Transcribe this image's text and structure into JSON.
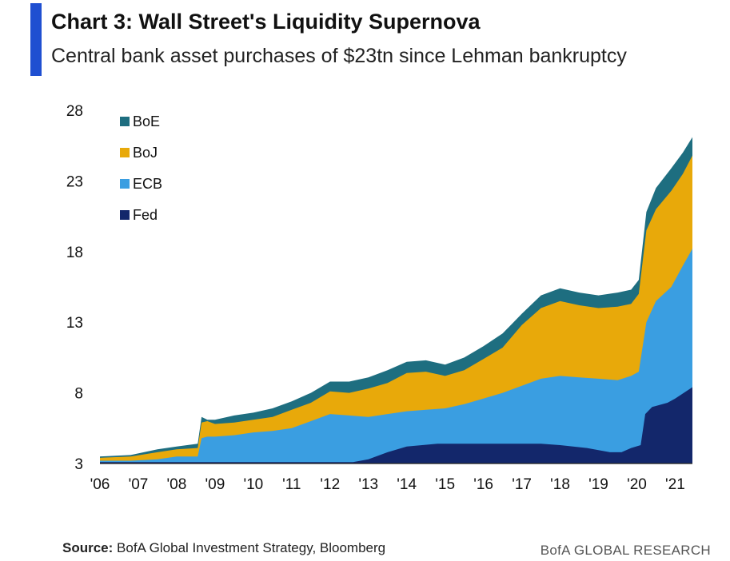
{
  "title": "Chart 3: Wall Street's Liquidity Supernova",
  "subtitle": "Central bank asset purchases of $23tn since Lehman bankruptcy",
  "source_label": "Source:",
  "source_text": "BofA Global Investment Strategy, Bloomberg",
  "brand": "BofA GLOBAL RESEARCH",
  "chart_data": {
    "type": "area",
    "stacked": true,
    "title": "",
    "xlabel": "",
    "ylabel": "",
    "ylim": [
      3,
      28
    ],
    "xlim": [
      2006.0,
      2021.45
    ],
    "y_ticks": [
      3,
      8,
      13,
      18,
      23,
      28
    ],
    "x_tick_labels": [
      {
        "label": "'06",
        "x": 2006.0
      },
      {
        "label": "'07",
        "x": 2007.0
      },
      {
        "label": "'08",
        "x": 2008.0
      },
      {
        "label": "'09",
        "x": 2009.0
      },
      {
        "label": "'10",
        "x": 2010.0
      },
      {
        "label": "'11",
        "x": 2011.0
      },
      {
        "label": "'12",
        "x": 2012.0
      },
      {
        "label": "'13",
        "x": 2013.0
      },
      {
        "label": "'14",
        "x": 2014.0
      },
      {
        "label": "'15",
        "x": 2015.0
      },
      {
        "label": "'16",
        "x": 2016.0
      },
      {
        "label": "'17",
        "x": 2017.0
      },
      {
        "label": "'18",
        "x": 2018.0
      },
      {
        "label": "'19",
        "x": 2019.0
      },
      {
        "label": "'20",
        "x": 2020.0
      },
      {
        "label": "'21",
        "x": 2021.0
      }
    ],
    "legend_position": "top-left",
    "legend_order": [
      "BoE",
      "BoJ",
      "ECB",
      "Fed"
    ],
    "series": [
      {
        "name": "Fed",
        "color": "#13276b",
        "points": [
          [
            2006.0,
            3.1
          ],
          [
            2008.6,
            3.1
          ],
          [
            2012.6,
            3.1
          ],
          [
            2013.0,
            3.3
          ],
          [
            2013.5,
            3.8
          ],
          [
            2014.0,
            4.2
          ],
          [
            2014.8,
            4.4
          ],
          [
            2015.5,
            4.4
          ],
          [
            2016.5,
            4.4
          ],
          [
            2017.5,
            4.4
          ],
          [
            2018.0,
            4.3
          ],
          [
            2018.7,
            4.1
          ],
          [
            2019.3,
            3.8
          ],
          [
            2019.6,
            3.8
          ],
          [
            2019.85,
            4.1
          ],
          [
            2020.1,
            4.3
          ],
          [
            2020.22,
            6.5
          ],
          [
            2020.4,
            7.0
          ],
          [
            2020.8,
            7.3
          ],
          [
            2021.0,
            7.6
          ],
          [
            2021.45,
            8.4
          ]
        ]
      },
      {
        "name": "ECB",
        "color": "#3a9ee1",
        "points": [
          [
            2006.0,
            3.2
          ],
          [
            2006.8,
            3.2
          ],
          [
            2007.5,
            3.3
          ],
          [
            2008.0,
            3.5
          ],
          [
            2008.55,
            3.5
          ],
          [
            2008.65,
            4.8
          ],
          [
            2008.8,
            4.9
          ],
          [
            2009.0,
            4.9
          ],
          [
            2009.5,
            5.0
          ],
          [
            2010.0,
            5.2
          ],
          [
            2010.5,
            5.3
          ],
          [
            2011.0,
            5.5
          ],
          [
            2011.5,
            6.0
          ],
          [
            2012.0,
            6.5
          ],
          [
            2012.5,
            6.4
          ],
          [
            2013.0,
            6.3
          ],
          [
            2013.5,
            6.5
          ],
          [
            2014.0,
            6.7
          ],
          [
            2014.5,
            6.8
          ],
          [
            2015.0,
            6.9
          ],
          [
            2015.5,
            7.2
          ],
          [
            2016.0,
            7.6
          ],
          [
            2016.5,
            8.0
          ],
          [
            2017.0,
            8.5
          ],
          [
            2017.5,
            9.0
          ],
          [
            2018.0,
            9.2
          ],
          [
            2018.5,
            9.1
          ],
          [
            2019.0,
            9.0
          ],
          [
            2019.5,
            8.9
          ],
          [
            2019.85,
            9.2
          ],
          [
            2020.05,
            9.5
          ],
          [
            2020.25,
            13.0
          ],
          [
            2020.5,
            14.5
          ],
          [
            2020.9,
            15.5
          ],
          [
            2021.2,
            17.0
          ],
          [
            2021.45,
            18.2
          ]
        ]
      },
      {
        "name": "BoJ",
        "color": "#e8a90a",
        "points": [
          [
            2006.0,
            3.4
          ],
          [
            2006.8,
            3.5
          ],
          [
            2007.5,
            3.8
          ],
          [
            2008.0,
            4.0
          ],
          [
            2008.55,
            4.1
          ],
          [
            2008.65,
            5.9
          ],
          [
            2008.8,
            6.0
          ],
          [
            2009.0,
            5.8
          ],
          [
            2009.5,
            5.9
          ],
          [
            2010.0,
            6.1
          ],
          [
            2010.5,
            6.3
          ],
          [
            2011.0,
            6.8
          ],
          [
            2011.5,
            7.3
          ],
          [
            2012.0,
            8.1
          ],
          [
            2012.5,
            8.0
          ],
          [
            2013.0,
            8.3
          ],
          [
            2013.5,
            8.7
          ],
          [
            2014.0,
            9.4
          ],
          [
            2014.5,
            9.5
          ],
          [
            2015.0,
            9.2
          ],
          [
            2015.5,
            9.6
          ],
          [
            2016.0,
            10.4
          ],
          [
            2016.5,
            11.2
          ],
          [
            2017.0,
            12.8
          ],
          [
            2017.5,
            14.0
          ],
          [
            2018.0,
            14.5
          ],
          [
            2018.5,
            14.2
          ],
          [
            2019.0,
            14.0
          ],
          [
            2019.5,
            14.1
          ],
          [
            2019.85,
            14.3
          ],
          [
            2020.05,
            15.0
          ],
          [
            2020.25,
            19.5
          ],
          [
            2020.5,
            21.0
          ],
          [
            2020.9,
            22.3
          ],
          [
            2021.2,
            23.5
          ],
          [
            2021.45,
            24.8
          ]
        ]
      },
      {
        "name": "BoE",
        "color": "#1e6e80",
        "points": [
          [
            2006.0,
            3.5
          ],
          [
            2006.8,
            3.6
          ],
          [
            2007.5,
            4.0
          ],
          [
            2008.0,
            4.2
          ],
          [
            2008.55,
            4.4
          ],
          [
            2008.65,
            6.3
          ],
          [
            2008.8,
            6.1
          ],
          [
            2009.0,
            6.1
          ],
          [
            2009.5,
            6.4
          ],
          [
            2010.0,
            6.6
          ],
          [
            2010.5,
            6.9
          ],
          [
            2011.0,
            7.4
          ],
          [
            2011.5,
            8.0
          ],
          [
            2012.0,
            8.8
          ],
          [
            2012.5,
            8.8
          ],
          [
            2013.0,
            9.1
          ],
          [
            2013.5,
            9.6
          ],
          [
            2014.0,
            10.2
          ],
          [
            2014.5,
            10.3
          ],
          [
            2015.0,
            10.0
          ],
          [
            2015.5,
            10.5
          ],
          [
            2016.0,
            11.3
          ],
          [
            2016.5,
            12.2
          ],
          [
            2017.0,
            13.6
          ],
          [
            2017.5,
            14.9
          ],
          [
            2018.0,
            15.4
          ],
          [
            2018.5,
            15.1
          ],
          [
            2019.0,
            14.9
          ],
          [
            2019.5,
            15.1
          ],
          [
            2019.85,
            15.3
          ],
          [
            2020.05,
            16.0
          ],
          [
            2020.25,
            20.8
          ],
          [
            2020.5,
            22.5
          ],
          [
            2020.9,
            23.9
          ],
          [
            2021.2,
            25.0
          ],
          [
            2021.45,
            26.1
          ]
        ]
      }
    ]
  }
}
